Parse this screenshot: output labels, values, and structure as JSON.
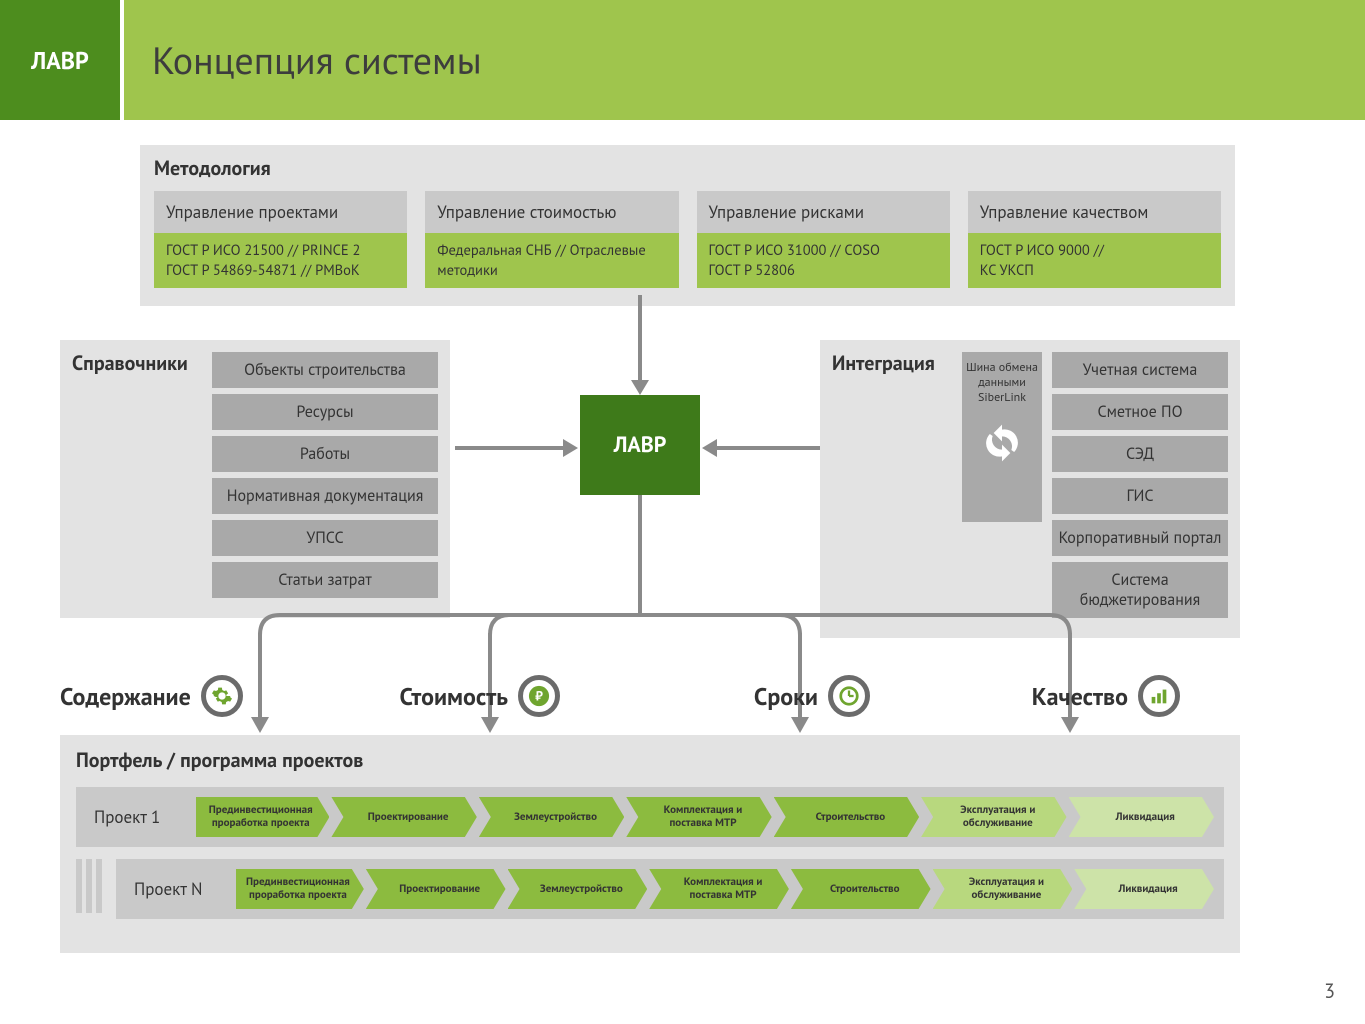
{
  "header": {
    "logo": "ЛАВР",
    "title": "Концепция системы"
  },
  "methodology": {
    "title": "Методология",
    "cols": [
      {
        "head": "Управление проектами",
        "body": "ГОСТ Р ИСО 21500 // PRINCE 2\nГОСТ Р 54869-54871 // PMBoK"
      },
      {
        "head": "Управление стоимостью",
        "body": "Федеральная СНБ // Отраслевые методики"
      },
      {
        "head": "Управление рисками",
        "body": "ГОСТ Р ИСО 31000 // COSO\nГОСТ Р 52806"
      },
      {
        "head": "Управление качеством",
        "body": "ГОСТ Р ИСО 9000 //\nКС УКСП"
      }
    ]
  },
  "references": {
    "title": "Справочники",
    "items": [
      "Объекты строительства",
      "Ресурсы",
      "Работы",
      "Нормативная документация",
      "УПСС",
      "Статьи затрат"
    ]
  },
  "integration": {
    "title": "Интеграция",
    "bus": "Шина обмена данными SiberLink",
    "items": [
      "Учетная система",
      "Сметное ПО",
      "СЭД",
      "ГИС",
      "Корпоративный портал",
      "Система бюджетирования"
    ]
  },
  "center": "ЛАВР",
  "outputs": [
    {
      "label": "Содержание",
      "icon": "gear"
    },
    {
      "label": "Стоимость",
      "icon": "ruble"
    },
    {
      "label": "Сроки",
      "icon": "clock"
    },
    {
      "label": "Качество",
      "icon": "bars"
    }
  ],
  "portfolio": {
    "title": "Портфель / программа проектов",
    "projects": [
      {
        "label": "Проект 1",
        "shifted": false
      },
      {
        "label": "Проект N",
        "shifted": true
      }
    ],
    "stages": [
      {
        "label": "Прединвестиционная проработка проекта",
        "tone": "g1"
      },
      {
        "label": "Проектирование",
        "tone": "g1"
      },
      {
        "label": "Землеустройство",
        "tone": "g1"
      },
      {
        "label": "Комплектация и поставка МТР",
        "tone": "g1"
      },
      {
        "label": "Строительство",
        "tone": "g1"
      },
      {
        "label": "Эксплуатация и обслуживание",
        "tone": "g2"
      },
      {
        "label": "Ликвидация",
        "tone": "g3"
      }
    ]
  },
  "colors": {
    "dark_green": "#3e7a1a",
    "olive": "#9fc54d",
    "header_green": "#4d8d1e",
    "panel_gray": "#e3e3e3",
    "btn_gray": "#a9a9a9",
    "arrow_gray": "#8a8a8a",
    "icon_green": "#6fa52f",
    "ring_gray": "#6b6b6b"
  },
  "page_number": "3"
}
